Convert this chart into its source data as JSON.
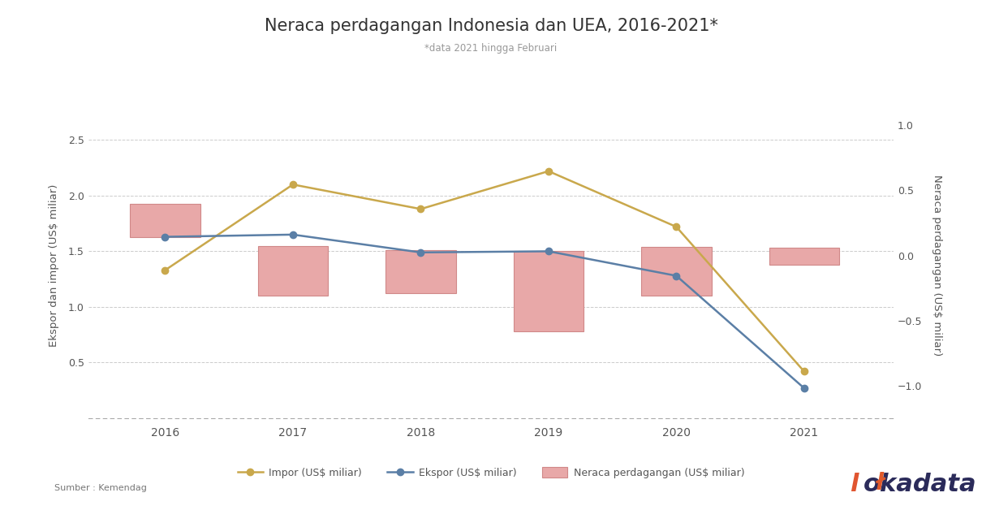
{
  "title": "Neraca perdagangan Indonesia dan UEA, 2016-2021*",
  "subtitle": "*data 2021 hingga Februari",
  "years": [
    2016,
    2017,
    2018,
    2019,
    2020,
    2021
  ],
  "impor": [
    1.33,
    2.1,
    1.88,
    2.22,
    1.72,
    0.42
  ],
  "ekspor": [
    1.63,
    1.65,
    1.49,
    1.5,
    1.28,
    0.27
  ],
  "bar_bottom": [
    1.63,
    1.1,
    1.12,
    0.78,
    1.1,
    1.38
  ],
  "bar_top": [
    1.93,
    1.55,
    1.51,
    1.5,
    1.54,
    1.53
  ],
  "impor_color": "#C9A84C",
  "ekspor_color": "#5B7FA6",
  "bar_color": "#E8A8A8",
  "bar_edge_color": "#D08888",
  "ylabel_left": "Ekspor dan impor (US$ miliar)",
  "ylabel_right": "Neraca perdagangan (US$ miliar)",
  "ylim_left": [
    0.0,
    2.75
  ],
  "ylim_right": [
    -1.25,
    1.1
  ],
  "yticks_left": [
    0.5,
    1.0,
    1.5,
    2.0,
    2.5
  ],
  "yticks_right": [
    -1.0,
    -0.5,
    0.0,
    0.5,
    1.0
  ],
  "source": "Sumber : Kemendag",
  "legend_impor": "Impor (US$ miliar)",
  "legend_ekspor": "Ekspor (US$ miliar)",
  "legend_neraca": "Neraca perdagangan (US$ miliar)",
  "background_color": "#FFFFFF",
  "grid_color": "#CCCCCC",
  "bar_width": 0.55
}
